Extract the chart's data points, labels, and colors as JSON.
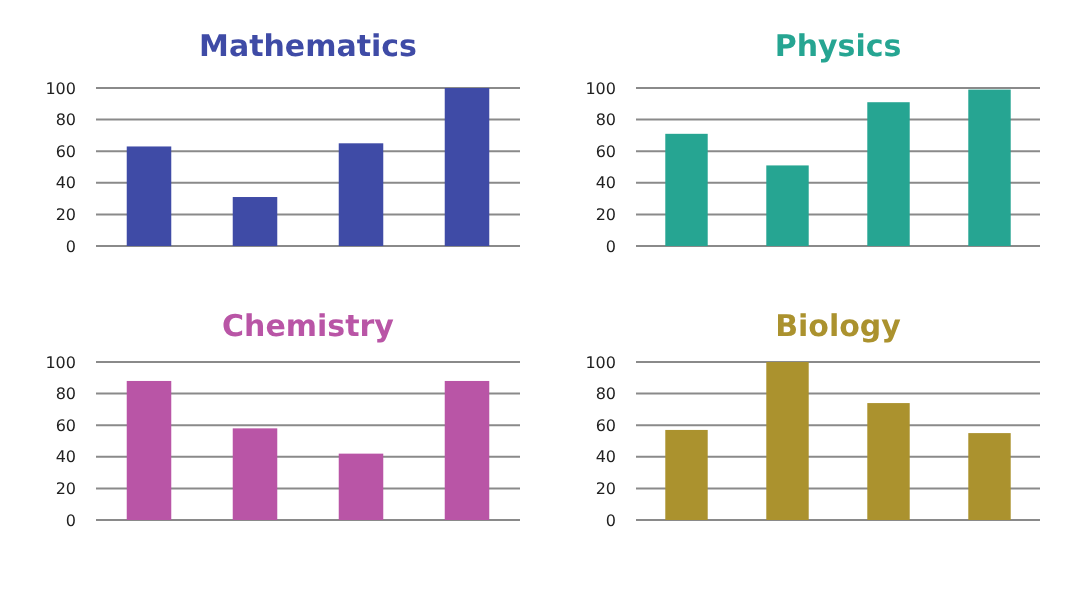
{
  "chart_data": [
    {
      "type": "bar",
      "title": "Mathematics",
      "categories": [
        null,
        null,
        null,
        null
      ],
      "values": [
        63,
        31,
        65,
        100
      ],
      "color": "#3f4ba6",
      "ylim": [
        0,
        100
      ],
      "yticks": [
        0,
        20,
        40,
        60,
        80,
        100
      ],
      "grid": "y"
    },
    {
      "type": "bar",
      "title": "Physics",
      "categories": [
        null,
        null,
        null,
        null
      ],
      "values": [
        71,
        51,
        91,
        99
      ],
      "color": "#26a592",
      "ylim": [
        0,
        100
      ],
      "yticks": [
        0,
        20,
        40,
        60,
        80,
        100
      ],
      "grid": "y"
    },
    {
      "type": "bar",
      "title": "Chemistry",
      "categories": [
        null,
        null,
        null,
        null
      ],
      "values": [
        88,
        58,
        42,
        88
      ],
      "color": "#b955a6",
      "ylim": [
        0,
        100
      ],
      "yticks": [
        0,
        20,
        40,
        60,
        80,
        100
      ],
      "grid": "y"
    },
    {
      "type": "bar",
      "title": "Biology",
      "categories": [
        null,
        null,
        null,
        null
      ],
      "values": [
        57,
        100,
        74,
        55
      ],
      "color": "#ab922e",
      "ylim": [
        0,
        100
      ],
      "yticks": [
        0,
        20,
        40,
        60,
        80,
        100
      ],
      "grid": "y"
    }
  ]
}
